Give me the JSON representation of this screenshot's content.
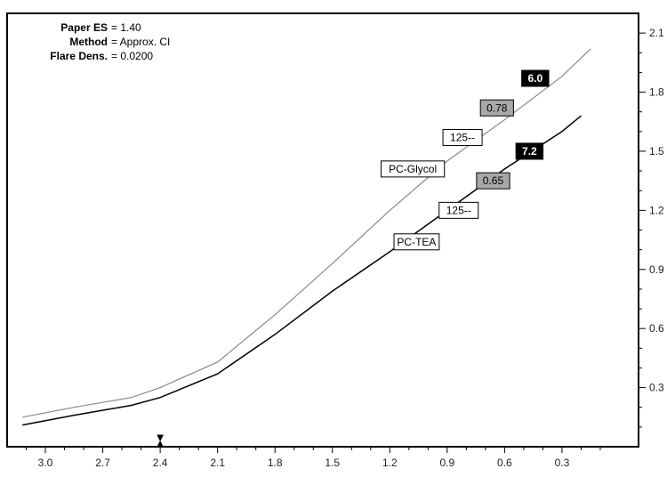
{
  "info": {
    "es_label": "Paper ES",
    "es_value": "= 1.40",
    "method_label": "Method",
    "method_value": "= Approx. CI",
    "flare_label": "Flare Dens.",
    "flare_value": "= 0.0200"
  },
  "colors": {
    "glycol_line": "#8a8a8a",
    "tea_line": "#000000",
    "axis": "#000000"
  },
  "chart_data": {
    "type": "line",
    "title": "",
    "xlabel": "",
    "ylabel": "",
    "xlim": [
      3.2,
      -0.1
    ],
    "ylim": [
      0.0,
      2.2
    ],
    "x_ticks": [
      3.0,
      2.7,
      2.4,
      2.1,
      1.8,
      1.5,
      1.2,
      0.9,
      0.6,
      0.3
    ],
    "x_tick_labels": [
      "3.0",
      "2.7",
      "2.4",
      "2.1",
      "1.8",
      "1.5",
      "1.2",
      "0.9",
      "0.6",
      "0.3"
    ],
    "y_ticks": [
      0.3,
      0.6,
      0.9,
      1.2,
      1.5,
      1.8,
      2.1
    ],
    "y_tick_labels": [
      "0.3",
      "0.6",
      "0.9",
      "1.2",
      "1.5",
      "1.8",
      "2.1"
    ],
    "y_axis_side": "right",
    "grid": false,
    "marker_x": 2.4,
    "series": [
      {
        "name": "PC-Glycol",
        "x": [
          3.12,
          2.85,
          2.55,
          2.4,
          2.1,
          1.8,
          1.5,
          1.2,
          0.9,
          0.6,
          0.3,
          0.15
        ],
        "y": [
          0.15,
          0.2,
          0.25,
          0.3,
          0.43,
          0.67,
          0.93,
          1.2,
          1.45,
          1.66,
          1.88,
          2.02
        ]
      },
      {
        "name": "PC-TEA",
        "x": [
          3.12,
          2.85,
          2.55,
          2.4,
          2.1,
          1.8,
          1.5,
          1.2,
          0.9,
          0.6,
          0.3,
          0.2
        ],
        "y": [
          0.11,
          0.16,
          0.21,
          0.25,
          0.37,
          0.57,
          0.79,
          0.99,
          1.2,
          1.41,
          1.6,
          1.68
        ]
      }
    ],
    "annotations": [
      {
        "text": "6.0",
        "x": 0.44,
        "y": 1.87,
        "style": "black"
      },
      {
        "text": "0.78",
        "x": 0.64,
        "y": 1.72,
        "style": "gray"
      },
      {
        "text": "125--",
        "x": 0.82,
        "y": 1.57,
        "style": "white"
      },
      {
        "text": "PC-Glycol",
        "x": 1.08,
        "y": 1.41,
        "style": "white"
      },
      {
        "text": "7.2",
        "x": 0.47,
        "y": 1.5,
        "style": "black"
      },
      {
        "text": "0.65",
        "x": 0.66,
        "y": 1.35,
        "style": "gray"
      },
      {
        "text": "125--",
        "x": 0.84,
        "y": 1.2,
        "style": "white"
      },
      {
        "text": "PC-TEA",
        "x": 1.06,
        "y": 1.04,
        "style": "white"
      }
    ]
  }
}
